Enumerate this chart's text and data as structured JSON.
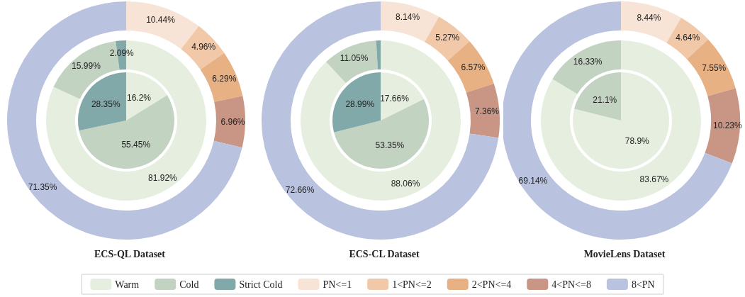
{
  "chart_data": [
    {
      "type": "donut",
      "title": "ECS-QL Dataset",
      "legend": "bottom",
      "categories": [
        "Warm",
        "Cold",
        "Strict Cold",
        "PN<=1",
        "1<PN<=2",
        "2<PN<=4",
        "4<PN<=8",
        "8<PN"
      ],
      "colors": [
        "#e6efdf",
        "#c3d3c2",
        "#82a9aa",
        "#f8e4d6",
        "#f1c8a8",
        "#e8b183",
        "#c99585",
        "#b9c3df"
      ],
      "series": [
        {
          "values": [
            16.2,
            55.45,
            28.35,
            null,
            null,
            null,
            null,
            null
          ],
          "value_labels": [
            "16.2%",
            "55.45%",
            "28.35%",
            null,
            null,
            null,
            null,
            null
          ]
        },
        {
          "values": [
            81.92,
            15.99,
            2.09,
            null,
            null,
            null,
            null,
            null
          ],
          "value_labels": [
            "81.92%",
            "15.99%",
            "2.09%",
            null,
            null,
            null,
            null,
            null
          ]
        },
        {
          "values": [
            null,
            null,
            null,
            10.44,
            4.96,
            6.29,
            6.96,
            71.35
          ],
          "value_labels": [
            null,
            null,
            null,
            "10.44%",
            "4.96%",
            "6.29%",
            "6.96%",
            "71.35%"
          ]
        }
      ]
    },
    {
      "type": "donut",
      "title": "ECS-CL Dataset",
      "categories": [
        null,
        null,
        null,
        null,
        null,
        null,
        null,
        null
      ],
      "colors": [
        "#e6efdf",
        "#c3d3c2",
        "#82a9aa",
        "#f8e4d6",
        "#f1c8a8",
        "#e8b183",
        "#c99585",
        "#b9c3df"
      ],
      "series": [
        {
          "values": [
            17.66,
            53.35,
            28.99,
            null,
            null,
            null,
            null,
            null
          ],
          "value_labels": [
            "17.66%",
            "53.35%",
            "28.99%",
            null,
            null,
            null,
            null,
            null
          ]
        },
        {
          "values": [
            88.06,
            11.05,
            0.89,
            null,
            null,
            null,
            null,
            null
          ],
          "value_labels": [
            "88.06%",
            "11.05%",
            null,
            null,
            null,
            null,
            null,
            null
          ]
        },
        {
          "values": [
            null,
            null,
            null,
            8.14,
            5.27,
            6.57,
            7.36,
            72.66
          ],
          "value_labels": [
            null,
            null,
            null,
            "8.14%",
            "5.27%",
            "6.57%",
            "7.36%",
            "72.66%"
          ]
        }
      ]
    },
    {
      "type": "donut",
      "title": "MovieLens Dataset",
      "categories": [
        null,
        null,
        null,
        null,
        null,
        null,
        null
      ],
      "colors": [
        "#e6efdf",
        "#c3d3c2",
        "#f8e4d6",
        "#f1c8a8",
        "#e8b183",
        "#c99585",
        "#b9c3df"
      ],
      "series": [
        {
          "values": [
            78.9,
            21.1,
            null,
            null,
            null,
            null,
            null
          ],
          "value_labels": [
            "78.9%",
            "21.1%",
            null,
            null,
            null,
            null,
            null
          ]
        },
        {
          "values": [
            83.67,
            16.33,
            null,
            null,
            null,
            null,
            null
          ],
          "value_labels": [
            "83.67%",
            "16.33%",
            null,
            null,
            null,
            null,
            null
          ]
        },
        {
          "values": [
            null,
            null,
            8.44,
            4.64,
            7.55,
            10.23,
            69.14
          ],
          "value_labels": [
            null,
            null,
            "8.44%",
            "4.64%",
            "7.55%",
            "10.23%",
            "69.14%"
          ]
        }
      ]
    }
  ]
}
